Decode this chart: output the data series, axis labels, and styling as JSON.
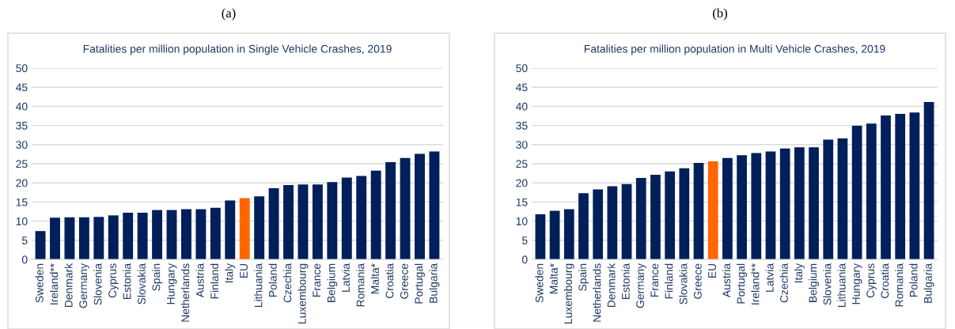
{
  "chart_data": [
    {
      "type": "bar",
      "title": "Fatalities per million population in Single Vehicle Crashes, 2019",
      "annotations": [
        "(a)"
      ],
      "categories": [
        "Sweden",
        "Ireland**",
        "Denmark",
        "Germany",
        "Slovenia",
        "Cyprus",
        "Estonia",
        "Slovakia",
        "Spain",
        "Hungary",
        "Netherlands",
        "Austria",
        "Finland",
        "Italy",
        "EU",
        "Lithuania",
        "Poland",
        "Czechia",
        "Luxembourg",
        "France",
        "Belgium",
        "Latvia",
        "Romania",
        "Malta*",
        "Croatia",
        "Greece",
        "Portugal",
        "Bulgaria"
      ],
      "values": [
        7.4,
        10.9,
        11.0,
        11.0,
        11.1,
        11.5,
        12.2,
        12.2,
        12.9,
        12.9,
        13.1,
        13.1,
        13.5,
        15.4,
        16.0,
        16.5,
        18.6,
        19.4,
        19.6,
        19.6,
        20.2,
        21.4,
        21.8,
        23.2,
        25.4,
        26.5,
        27.6,
        28.2
      ],
      "colors": [
        "#001f5b",
        "#001f5b",
        "#001f5b",
        "#001f5b",
        "#001f5b",
        "#001f5b",
        "#001f5b",
        "#001f5b",
        "#001f5b",
        "#001f5b",
        "#001f5b",
        "#001f5b",
        "#001f5b",
        "#001f5b",
        "#ff6600",
        "#001f5b",
        "#001f5b",
        "#001f5b",
        "#001f5b",
        "#001f5b",
        "#001f5b",
        "#001f5b",
        "#001f5b",
        "#001f5b",
        "#001f5b",
        "#001f5b",
        "#001f5b",
        "#001f5b"
      ],
      "ylim": [
        0,
        50
      ],
      "yticks": [
        0,
        5,
        10,
        15,
        20,
        25,
        30,
        35,
        40,
        45,
        50
      ],
      "grid": "y",
      "legend": false
    },
    {
      "type": "bar",
      "title": "Fatalities per million population in Multi Vehicle Crashes, 2019",
      "annotations": [
        "(b)"
      ],
      "categories": [
        "Sweden",
        "Malta*",
        "Luxembourg",
        "Spain",
        "Netherlands",
        "Denmark",
        "Estonia",
        "Germany",
        "France",
        "Finland",
        "Slovakia",
        "Greece",
        "EU",
        "Austria",
        "Portugal",
        "Ireland**",
        "Latvia",
        "Czechia",
        "Italy",
        "Belgium",
        "Slovenia",
        "Lithuania",
        "Hungary",
        "Cyprus",
        "Croatia",
        "Romania",
        "Poland",
        "Bulgaria"
      ],
      "values": [
        11.8,
        12.7,
        13.1,
        17.3,
        18.3,
        19.1,
        19.7,
        21.3,
        22.1,
        23.0,
        23.8,
        25.2,
        25.6,
        26.5,
        27.2,
        27.8,
        28.2,
        29.0,
        29.3,
        29.3,
        31.3,
        31.6,
        34.9,
        35.5,
        37.6,
        38.0,
        38.4,
        41.1
      ],
      "colors": [
        "#001f5b",
        "#001f5b",
        "#001f5b",
        "#001f5b",
        "#001f5b",
        "#001f5b",
        "#001f5b",
        "#001f5b",
        "#001f5b",
        "#001f5b",
        "#001f5b",
        "#001f5b",
        "#ff6600",
        "#001f5b",
        "#001f5b",
        "#001f5b",
        "#001f5b",
        "#001f5b",
        "#001f5b",
        "#001f5b",
        "#001f5b",
        "#001f5b",
        "#001f5b",
        "#001f5b",
        "#001f5b",
        "#001f5b",
        "#001f5b",
        "#001f5b"
      ],
      "ylim": [
        0,
        50
      ],
      "yticks": [
        0,
        5,
        10,
        15,
        20,
        25,
        30,
        35,
        40,
        45,
        50
      ],
      "grid": "y",
      "legend": false
    }
  ]
}
